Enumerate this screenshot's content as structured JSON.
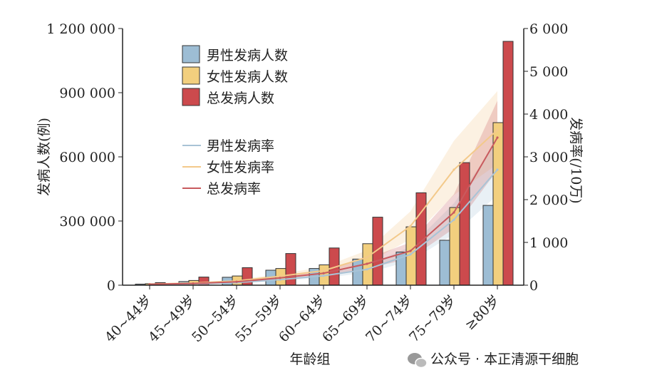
{
  "chart_data": {
    "type": "bar",
    "title": "",
    "xlabel": "年龄组",
    "ylabel": "发病人数(例)",
    "y2label": "发病率(/10万)",
    "categories": [
      "40~44岁",
      "45~49岁",
      "50~54岁",
      "55~59岁",
      "60~64岁",
      "65~69岁",
      "70~74岁",
      "75~79岁",
      "≥80岁"
    ],
    "ylim": [
      0,
      1200000
    ],
    "yticks": [
      "0",
      "300 000",
      "600 000",
      "900 000",
      "1 200 000"
    ],
    "y2lim": [
      0,
      6000
    ],
    "y2ticks": [
      "0",
      "1 000",
      "2 000",
      "3 000",
      "4 000",
      "5 000",
      "6 000"
    ],
    "bar_series": [
      {
        "name": "男性发病人数",
        "color": "#9dbdd4",
        "values": [
          5000,
          17000,
          37000,
          70000,
          78000,
          122000,
          155000,
          210000,
          373000
        ]
      },
      {
        "name": "女性发病人数",
        "color": "#f2cf7e",
        "values": [
          7000,
          22000,
          43000,
          78000,
          95000,
          194000,
          273000,
          363000,
          760000
        ]
      },
      {
        "name": "总发病人数",
        "color": "#cc4a4d",
        "values": [
          12000,
          38000,
          82000,
          148000,
          174000,
          318000,
          432000,
          573000,
          1140000
        ]
      }
    ],
    "line_series": [
      {
        "name": "男性发病率",
        "color": "#a9c3d6",
        "values": [
          15,
          30,
          60,
          130,
          220,
          370,
          720,
          1530,
          2700
        ]
      },
      {
        "name": "女性发病率",
        "color": "#f3c98a",
        "values": [
          25,
          50,
          100,
          210,
          340,
          650,
          1380,
          2700,
          3630
        ]
      },
      {
        "name": "总发病率",
        "color": "#c85a5e",
        "values": [
          20,
          40,
          80,
          170,
          280,
          500,
          800,
          1700,
          3450
        ]
      }
    ],
    "legend_placement": "top-left"
  },
  "watermark": {
    "text": "公众号 · 本正清源干细胞",
    "icon": "wechat-icon"
  }
}
